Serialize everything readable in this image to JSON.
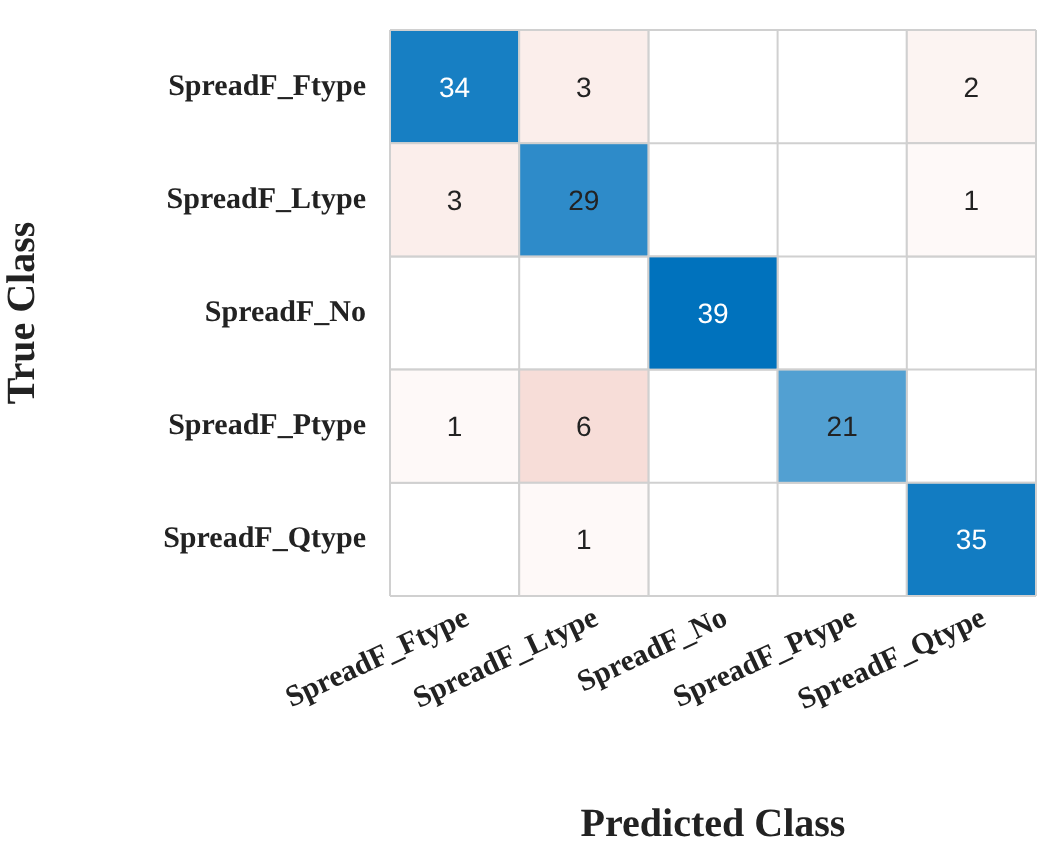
{
  "chart_data": {
    "type": "heatmap",
    "xlabel": "Predicted Class",
    "ylabel": "True Class",
    "categories": [
      "SpreadF_Ftype",
      "SpreadF_Ltype",
      "SpreadF_No",
      "SpreadF_Ptype",
      "SpreadF_Qtype"
    ],
    "y_categories": [
      "SpreadF_Ftype",
      "SpreadF_Ltype",
      "SpreadF_No",
      "SpreadF_Ptype",
      "SpreadF_Qtype"
    ],
    "cells": [
      [
        34,
        3,
        null,
        null,
        2
      ],
      [
        3,
        29,
        null,
        null,
        1
      ],
      [
        null,
        null,
        39,
        null,
        null
      ],
      [
        1,
        6,
        null,
        21,
        null
      ],
      [
        null,
        1,
        null,
        null,
        35
      ]
    ],
    "data_labels": true,
    "grid": true
  }
}
